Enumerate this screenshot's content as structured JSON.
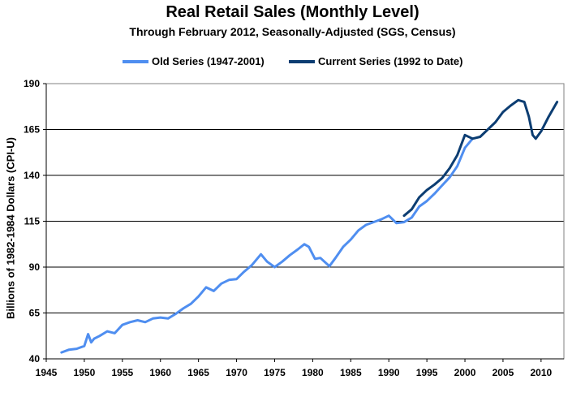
{
  "colors": {
    "old_series": "#4f8ef0",
    "current_series": "#0c3d72",
    "grid": "#000000",
    "background": "#ffffff"
  },
  "chart_data": {
    "type": "line",
    "title": "Real Retail Sales (Monthly Level)",
    "subtitle": "Through February 2012, Seasonally-Adjusted (SGS, Census)",
    "xlabel": "",
    "ylabel": "Billions of 1982-1984 Dollars (CPI-U)",
    "xlim": [
      1945,
      2013
    ],
    "ylim": [
      40,
      190
    ],
    "x_ticks": [
      1945,
      1950,
      1955,
      1960,
      1965,
      1970,
      1975,
      1980,
      1985,
      1990,
      1995,
      2000,
      2005,
      2010
    ],
    "y_ticks": [
      40,
      65,
      90,
      115,
      140,
      165,
      190
    ],
    "grid": "horizontal",
    "legend_position": "top-center",
    "series": [
      {
        "name": "Old Series (1947-2001)",
        "x": [
          1947.0,
          1948.0,
          1949.0,
          1950.0,
          1950.5,
          1950.9,
          1951.3,
          1952.0,
          1953.0,
          1954.0,
          1955.0,
          1956.0,
          1957.0,
          1958.0,
          1959.0,
          1960.0,
          1961.0,
          1962.0,
          1963.0,
          1964.0,
          1965.0,
          1966.0,
          1967.0,
          1968.0,
          1969.0,
          1970.0,
          1971.0,
          1972.0,
          1973.2,
          1974.0,
          1975.0,
          1976.0,
          1977.0,
          1978.0,
          1978.9,
          1979.5,
          1980.3,
          1981.0,
          1982.2,
          1983.0,
          1984.0,
          1985.0,
          1986.0,
          1987.0,
          1988.0,
          1989.0,
          1990.0,
          1991.0,
          1992.0,
          1993.0,
          1994.0,
          1995.0,
          1996.0,
          1997.0,
          1998.0,
          1999.0,
          2000.0,
          2001.0
        ],
        "values": [
          43.5,
          45,
          45.5,
          47,
          53.5,
          49,
          51,
          52.5,
          55,
          54,
          58.5,
          60,
          61,
          60,
          62,
          62.5,
          62,
          64.5,
          67.5,
          70,
          74,
          79,
          77,
          81,
          83,
          83.5,
          87.5,
          91,
          97,
          93,
          90,
          93,
          96.5,
          99.5,
          102.5,
          101,
          94.5,
          95,
          90.5,
          95,
          101,
          105,
          110,
          113,
          114.5,
          116,
          118,
          114,
          114.5,
          117,
          123,
          126,
          130,
          134.5,
          139,
          145,
          155,
          160
        ]
      },
      {
        "name": "Current Series (1992 to Date)",
        "x": [
          1992.0,
          1993.0,
          1994.0,
          1995.0,
          1996.0,
          1997.0,
          1998.0,
          1999.0,
          2000.0,
          2001.0,
          2002.0,
          2003.0,
          2004.0,
          2005.0,
          2006.0,
          2007.0,
          2007.8,
          2008.4,
          2008.9,
          2009.3,
          2010.0,
          2011.0,
          2012.1
        ],
        "values": [
          118,
          121.5,
          128,
          132,
          135,
          138.5,
          144,
          151,
          162,
          160,
          161,
          165,
          169,
          174.5,
          178,
          181,
          180,
          172,
          162,
          160,
          164,
          172,
          180
        ]
      }
    ]
  }
}
